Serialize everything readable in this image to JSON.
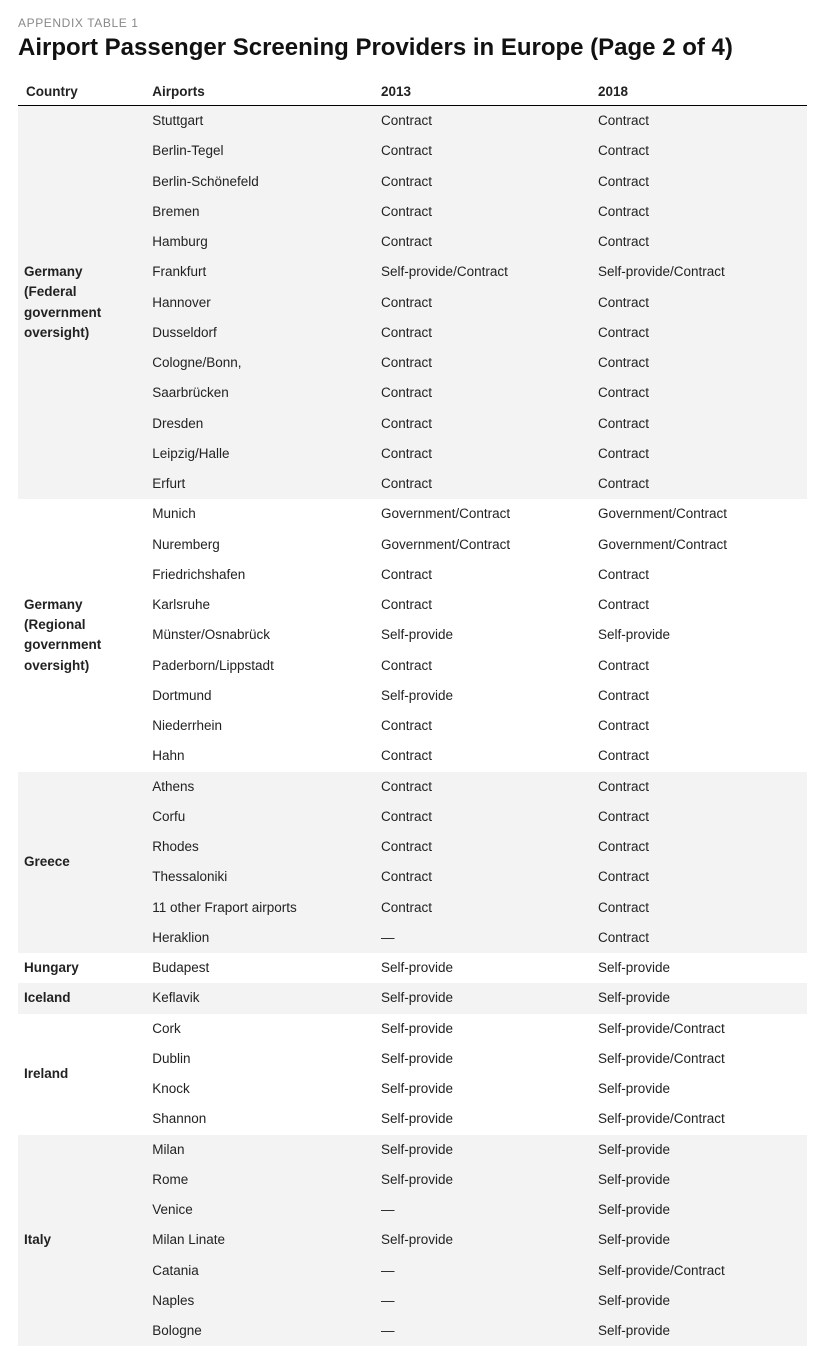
{
  "pre_title": "APPENDIX TABLE 1",
  "title": "Airport Passenger Screening Providers in Europe (Page 2 of 4)",
  "columns": [
    "Country",
    "Airports",
    "2013",
    "2018"
  ],
  "colors": {
    "stripe": "#f3f3f3",
    "plain": "#ffffff",
    "header_rule": "#000000",
    "text": "#222222",
    "pre_title": "#888888"
  },
  "typography": {
    "pre_title_fontsize": 12,
    "title_fontsize": 24,
    "body_fontsize": 13.5
  },
  "groups": [
    {
      "country": "Germany (Federal government oversight)",
      "striped": true,
      "rows": [
        {
          "airport": "Stuttgart",
          "y2013": "Contract",
          "y2018": "Contract"
        },
        {
          "airport": "Berlin-Tegel",
          "y2013": "Contract",
          "y2018": "Contract"
        },
        {
          "airport": "Berlin-Schönefeld",
          "y2013": "Contract",
          "y2018": "Contract"
        },
        {
          "airport": "Bremen",
          "y2013": "Contract",
          "y2018": "Contract"
        },
        {
          "airport": "Hamburg",
          "y2013": "Contract",
          "y2018": "Contract"
        },
        {
          "airport": "Frankfurt",
          "y2013": "Self-provide/Contract",
          "y2018": "Self-provide/Contract"
        },
        {
          "airport": "Hannover",
          "y2013": "Contract",
          "y2018": "Contract"
        },
        {
          "airport": "Dusseldorf",
          "y2013": "Contract",
          "y2018": "Contract"
        },
        {
          "airport": "Cologne/Bonn,",
          "y2013": "Contract",
          "y2018": "Contract"
        },
        {
          "airport": "Saarbrücken",
          "y2013": "Contract",
          "y2018": "Contract"
        },
        {
          "airport": "Dresden",
          "y2013": "Contract",
          "y2018": "Contract"
        },
        {
          "airport": "Leipzig/Halle",
          "y2013": "Contract",
          "y2018": "Contract"
        },
        {
          "airport": "Erfurt",
          "y2013": "Contract",
          "y2018": "Contract"
        }
      ]
    },
    {
      "country": "Germany (Regional government oversight)",
      "striped": false,
      "rows": [
        {
          "airport": "Munich",
          "y2013": "Government/Contract",
          "y2018": "Government/Contract"
        },
        {
          "airport": "Nuremberg",
          "y2013": "Government/Contract",
          "y2018": "Government/Contract"
        },
        {
          "airport": "Friedrichshafen",
          "y2013": "Contract",
          "y2018": "Contract"
        },
        {
          "airport": "Karlsruhe",
          "y2013": "Contract",
          "y2018": "Contract"
        },
        {
          "airport": "Münster/Osnabrück",
          "y2013": "Self-provide",
          "y2018": "Self-provide"
        },
        {
          "airport": "Paderborn/Lippstadt",
          "y2013": "Contract",
          "y2018": "Contract"
        },
        {
          "airport": "Dortmund",
          "y2013": "Self-provide",
          "y2018": "Contract"
        },
        {
          "airport": "Niederrhein",
          "y2013": "Contract",
          "y2018": "Contract"
        },
        {
          "airport": "Hahn",
          "y2013": "Contract",
          "y2018": "Contract"
        }
      ]
    },
    {
      "country": "Greece",
      "striped": true,
      "rows": [
        {
          "airport": "Athens",
          "y2013": "Contract",
          "y2018": "Contract"
        },
        {
          "airport": "Corfu",
          "y2013": "Contract",
          "y2018": "Contract"
        },
        {
          "airport": "Rhodes",
          "y2013": "Contract",
          "y2018": "Contract"
        },
        {
          "airport": "Thessaloniki",
          "y2013": "Contract",
          "y2018": "Contract"
        },
        {
          "airport": "11 other Fraport airports",
          "y2013": "Contract",
          "y2018": "Contract"
        },
        {
          "airport": "Heraklion",
          "y2013": "—",
          "y2018": "Contract"
        }
      ]
    },
    {
      "country": "Hungary",
      "striped": false,
      "rows": [
        {
          "airport": "Budapest",
          "y2013": "Self-provide",
          "y2018": "Self-provide"
        }
      ]
    },
    {
      "country": "Iceland",
      "striped": true,
      "rows": [
        {
          "airport": "Keflavik",
          "y2013": "Self-provide",
          "y2018": "Self-provide"
        }
      ]
    },
    {
      "country": "Ireland",
      "striped": false,
      "rows": [
        {
          "airport": "Cork",
          "y2013": "Self-provide",
          "y2018": "Self-provide/Contract"
        },
        {
          "airport": "Dublin",
          "y2013": "Self-provide",
          "y2018": "Self-provide/Contract"
        },
        {
          "airport": "Knock",
          "y2013": "Self-provide",
          "y2018": "Self-provide"
        },
        {
          "airport": "Shannon",
          "y2013": "Self-provide",
          "y2018": "Self-provide/Contract"
        }
      ]
    },
    {
      "country": "Italy",
      "striped": true,
      "rows": [
        {
          "airport": "Milan",
          "y2013": "Self-provide",
          "y2018": "Self-provide"
        },
        {
          "airport": "Rome",
          "y2013": "Self-provide",
          "y2018": "Self-provide"
        },
        {
          "airport": "Venice",
          "y2013": "—",
          "y2018": "Self-provide"
        },
        {
          "airport": "Milan Linate",
          "y2013": "Self-provide",
          "y2018": "Self-provide"
        },
        {
          "airport": "Catania",
          "y2013": "—",
          "y2018": "Self-provide/Contract"
        },
        {
          "airport": "Naples",
          "y2013": "—",
          "y2018": "Self-provide"
        },
        {
          "airport": "Bologne",
          "y2013": "—",
          "y2018": "Self-provide"
        }
      ]
    }
  ]
}
